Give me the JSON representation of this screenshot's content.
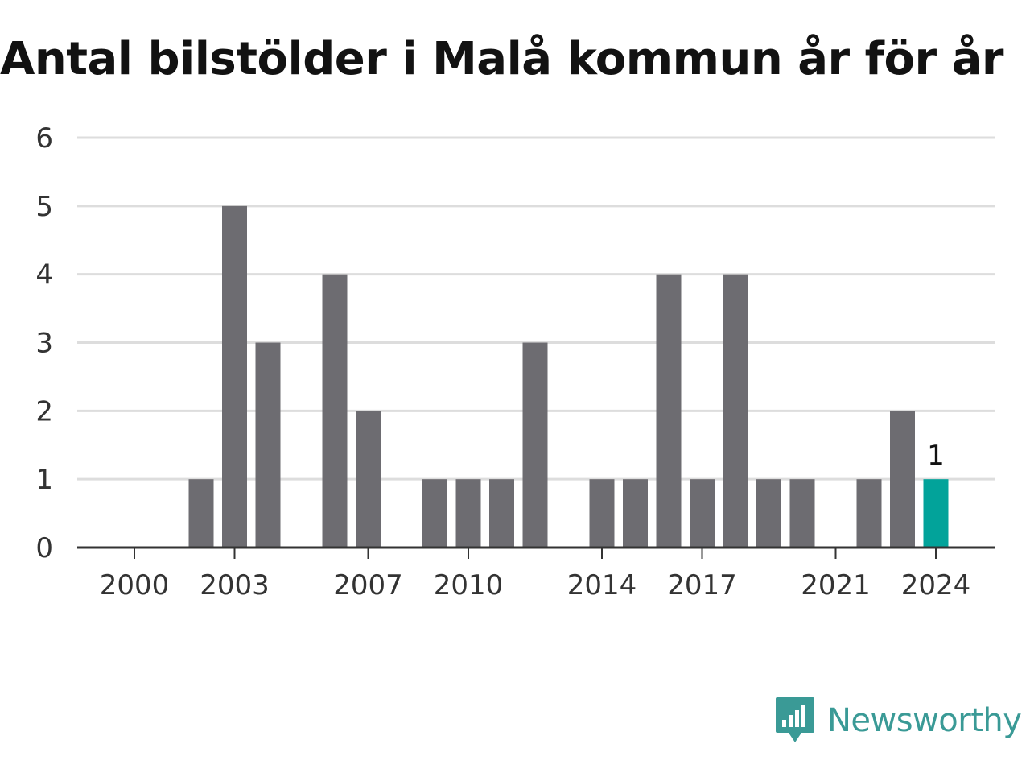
{
  "title": "Antal bilstölder i Malå kommun år för år",
  "brand": {
    "name": "Newsworthy",
    "icon": "newsworthy-logo-icon",
    "color": "#3a9a96"
  },
  "colors": {
    "bar": "#6d6c71",
    "highlight": "#02a39a",
    "grid": "#dddddd",
    "axis": "#333333"
  },
  "chart_data": {
    "type": "bar",
    "title": "Antal bilstölder i Malå kommun år för år",
    "xlabel": "",
    "ylabel": "",
    "categories": [
      "2000",
      "2001",
      "2002",
      "2003",
      "2004",
      "2005",
      "2006",
      "2007",
      "2008",
      "2009",
      "2010",
      "2011",
      "2012",
      "2013",
      "2014",
      "2015",
      "2016",
      "2017",
      "2018",
      "2019",
      "2020",
      "2021",
      "2022",
      "2023",
      "2024"
    ],
    "values": [
      0,
      0,
      1,
      5,
      3,
      0,
      4,
      2,
      0,
      1,
      1,
      1,
      3,
      0,
      1,
      1,
      4,
      1,
      4,
      1,
      1,
      0,
      1,
      2,
      1
    ],
    "x_tick_labels": [
      "2000",
      "2003",
      "2007",
      "2010",
      "2014",
      "2017",
      "2021",
      "2024"
    ],
    "y_ticks": [
      0,
      1,
      2,
      3,
      4,
      5,
      6
    ],
    "ylim": [
      0,
      6
    ],
    "grid": true,
    "legend": "none",
    "highlight_category": "2024",
    "data_labels": [
      {
        "category": "2024",
        "text": "1"
      }
    ]
  }
}
